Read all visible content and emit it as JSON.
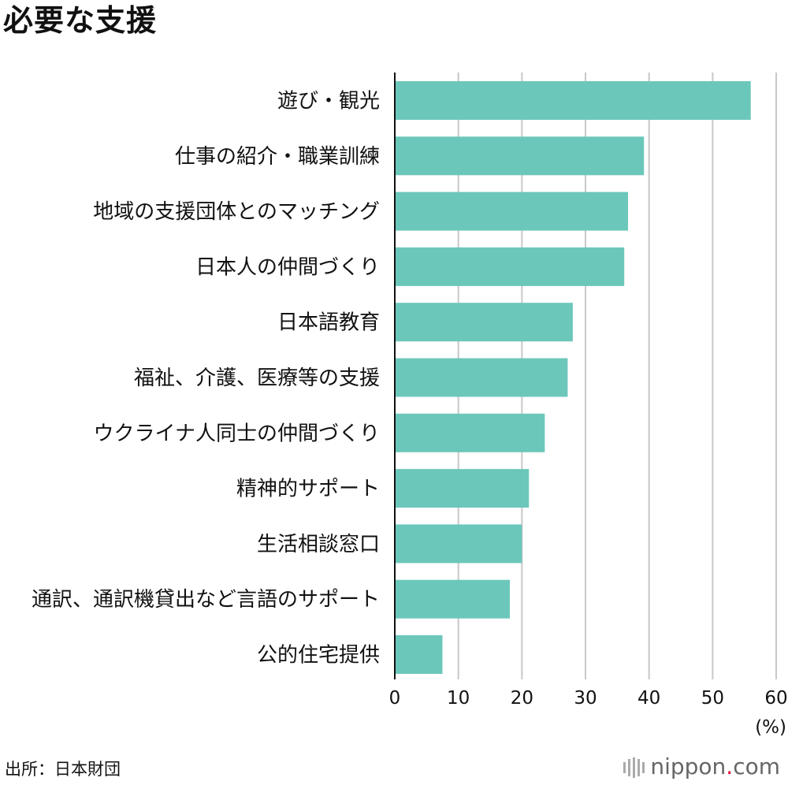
{
  "chart_data": {
    "type": "bar",
    "orientation": "horizontal",
    "title": "必要な支援",
    "categories": [
      "遊び・観光",
      "仕事の紹介・職業訓練",
      "地域の支援団体とのマッチング",
      "日本人の仲間づくり",
      "日本語教育",
      "福祉、介護、医療等の支援",
      "ウクライナ人同士の仲間づくり",
      "精神的サポート",
      "生活相談窓口",
      "通訳、通訳機貸出など言語のサポート",
      "公的住宅提供"
    ],
    "values": [
      56.0,
      39.2,
      36.7,
      36.1,
      28.0,
      27.2,
      23.6,
      21.1,
      20.0,
      18.1,
      7.5
    ],
    "xlim": [
      0,
      60
    ],
    "xticks": [
      0,
      10,
      20,
      30,
      40,
      50,
      60
    ],
    "unit_label": "(%)",
    "grid": true,
    "bar_color": "#6cc7bb",
    "grid_color": "#c8c8c8"
  },
  "source": "出所：日本財団",
  "brand": {
    "name": "nippon",
    "dot": ".",
    "suffix": "com",
    "dot_color": "#e6002d"
  }
}
